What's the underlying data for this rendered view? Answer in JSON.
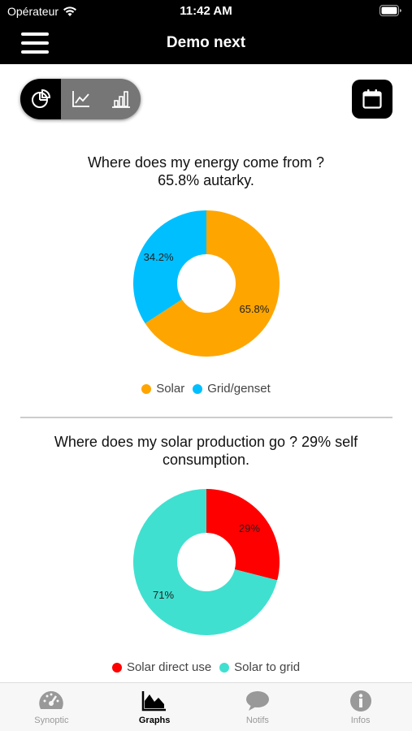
{
  "status": {
    "carrier": "Opérateur",
    "time": "11:42 AM"
  },
  "nav": {
    "title": "Demo next"
  },
  "colors": {
    "solar": "#FFA500",
    "grid": "#00BFFF",
    "direct": "#FF0000",
    "togrid": "#40E0D0"
  },
  "segment": {
    "icons": [
      "pie-chart-icon",
      "line-chart-icon",
      "bar-chart-icon"
    ],
    "active_index": 0
  },
  "chart_data": [
    {
      "type": "pie",
      "title": "Where does my energy come from ? 65.8% autarky.",
      "title_line1": "Where does my energy come from ?",
      "title_line2": "65.8% autarky.",
      "categories": [
        "Solar",
        "Grid/genset"
      ],
      "values": [
        65.8,
        34.2
      ],
      "labels": [
        "65.8%",
        "34.2%"
      ],
      "colors": [
        "#FFA500",
        "#00BFFF"
      ],
      "legend": "bottom"
    },
    {
      "type": "pie",
      "title": "Where does my solar production go ? 29% self consumption.",
      "title_line1": "Where does my solar production go ? 29% self",
      "title_line2": "consumption.",
      "categories": [
        "Solar direct use",
        "Solar to grid"
      ],
      "values": [
        29,
        71
      ],
      "labels": [
        "29%",
        "71%"
      ],
      "colors": [
        "#FF0000",
        "#40E0D0"
      ],
      "legend": "bottom"
    }
  ],
  "tabs": [
    {
      "label": "Synoptic",
      "icon": "gauge-icon",
      "active": false
    },
    {
      "label": "Graphs",
      "icon": "area-chart-icon",
      "active": true
    },
    {
      "label": "Notifs",
      "icon": "speech-bubble-icon",
      "active": false
    },
    {
      "label": "Infos",
      "icon": "info-icon",
      "active": false
    }
  ]
}
